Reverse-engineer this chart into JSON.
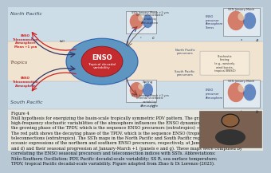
{
  "bg_top_color": "#c8dce8",
  "bg_mid_color": "#f0e4d0",
  "bg_bot_color": "#c8dce8",
  "fig_bg": "#b8c8d4",
  "north_pacific_label": "North Pacific",
  "tropics_label": "Tropics",
  "south_pacific_label": "South Pacific",
  "enso_label": "ENSO",
  "tropical_label": "Tropical decadal\nvariability",
  "outer_ellipse_color": "#4a8cbf",
  "inner_ellipse_color": "#cc2222",
  "arrow_red": "#cc2222",
  "arrow_dark": "#333366",
  "arrow_gray": "#555555",
  "left_red_upper": "ENSO\nTeleconnection\nAtmosphere\nMean +1 yea",
  "left_red_lower": "ENSO\nTeleconnection\nAtmosphere",
  "fall_label": "fall",
  "spring_label": "Spring",
  "upper_stoch": "Internal stochastic\nvariability\nAtmosphere",
  "lower_stoch": "Internal stochastic\nvariability\nAtmosphere",
  "upper_enso_prec": "ENSO\nprecursor\nAtmosphere\nStress",
  "lower_enso_prec": "ENSO\nprecursor\nAtmosphere",
  "north_pac_prec": "North Pacific\nprecursors",
  "south_pac_prec": "South Pacific\nprecursors",
  "stoch_box_text": "Stochastic\nforcing\n(e.g., westerly\nwind bursts,\ntropical BSISO)",
  "sst_upper_c": "SSTs January-March +1 yea",
  "sst_lower_d": "SSTs January-March +1 yea",
  "sst_upper_a": "SSTs January-March",
  "sst_lower_b": "SSTs January-March",
  "caption": "Figure 4\nNull hypothesis for energizing the basin-scale tropically symmetric PDV pattern. The gray path shows how\nhigh-frequency stochastic variabilities of the atmosphere influences the ENSO dynamics. The blue path shows\nthe growing phase of the TPDV, which is the sequence ENSO precursors (extratropics) → ENSO (tropics) →\nThe red path shows the decaying phase of the TPDV, which is the sequence ENSO (tropics) → ENSO\nteleconnections (extratropics). The SSTs maps in the North Pacific and South Pacific regions show the composite\noceanic expressions of the northern and southern ENSO precursors, respectively, at January-March (panels c\nand d) and their seasonal progression at January-March +1 (panels e and g). These maps were computed by\ncorrelating the ENSO seasonal precursors and teleconnection indices with SSTs. Abbreviations:\nNiño-Southern Oscillation; PDV, Pacific decadal-scale variability; SS R, sea surface temperature;\nTPDV, tropical Pacific decadal-scale variability. Figure adapted from Zhao & Di Lorenzo (2023).",
  "person_color": "#8a6040"
}
